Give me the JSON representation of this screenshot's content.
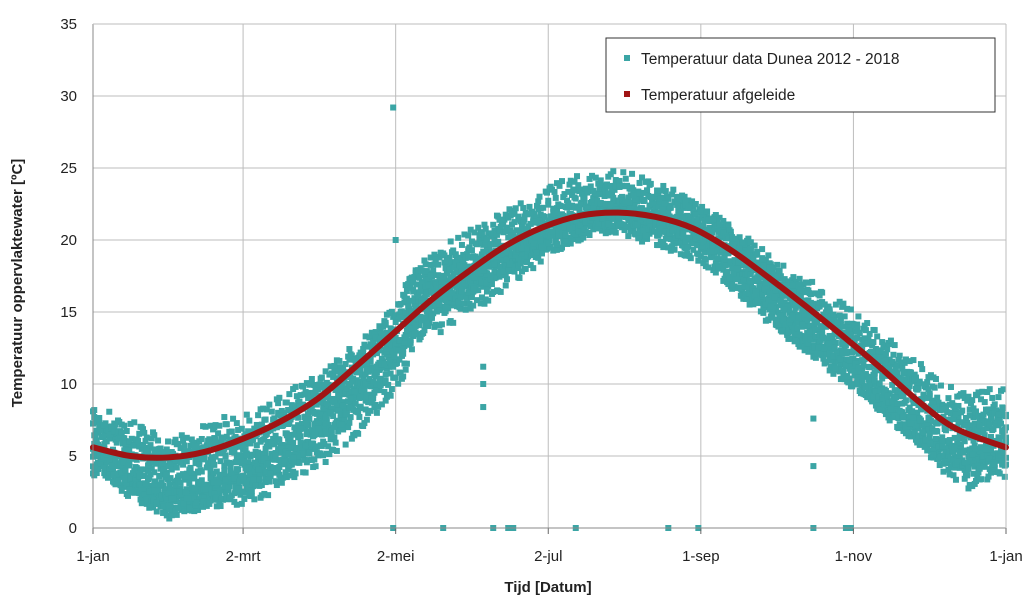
{
  "chart_data": {
    "type": "scatter",
    "xlabel": "Tijd [Datum]",
    "ylabel": "Temperatuur oppervlaktewater [ºC]",
    "x_range_days": [
      0,
      365
    ],
    "ylim": [
      0,
      35
    ],
    "y_ticks": [
      "0",
      "5",
      "10",
      "15",
      "20",
      "25",
      "30",
      "35"
    ],
    "x_ticks": [
      {
        "day": 0,
        "label": "1-jan"
      },
      {
        "day": 60,
        "label": "2-mrt"
      },
      {
        "day": 121,
        "label": "2-mei"
      },
      {
        "day": 182,
        "label": "2-jul"
      },
      {
        "day": 243,
        "label": "1-sep"
      },
      {
        "day": 304,
        "label": "1-nov"
      },
      {
        "day": 365,
        "label": "1-jan"
      }
    ],
    "grid": true,
    "legend_position": "top-right",
    "series": [
      {
        "name": "Temperatuur data Dunea 2012 - 2018",
        "kind": "scatter",
        "color": "#3ba5a5",
        "profile": [
          [
            0,
            6.5
          ],
          [
            10,
            5.5
          ],
          [
            20,
            4.5
          ],
          [
            30,
            3.5
          ],
          [
            40,
            3.8
          ],
          [
            50,
            4.5
          ],
          [
            60,
            4.8
          ],
          [
            70,
            5.5
          ],
          [
            80,
            6.5
          ],
          [
            90,
            7.5
          ],
          [
            100,
            9.0
          ],
          [
            110,
            10.5
          ],
          [
            120,
            12.5
          ],
          [
            130,
            15.5
          ],
          [
            140,
            16.5
          ],
          [
            150,
            17.5
          ],
          [
            160,
            18.5
          ],
          [
            170,
            19.5
          ],
          [
            180,
            20.5
          ],
          [
            190,
            21.5
          ],
          [
            200,
            22.0
          ],
          [
            210,
            22.5
          ],
          [
            220,
            22.0
          ],
          [
            230,
            21.5
          ],
          [
            240,
            21.0
          ],
          [
            250,
            20.0
          ],
          [
            260,
            18.5
          ],
          [
            270,
            17.0
          ],
          [
            280,
            15.5
          ],
          [
            290,
            14.5
          ],
          [
            300,
            13.0
          ],
          [
            310,
            11.5
          ],
          [
            320,
            10.0
          ],
          [
            330,
            8.5
          ],
          [
            340,
            7.0
          ],
          [
            350,
            6.0
          ],
          [
            360,
            6.5
          ],
          [
            365,
            6.5
          ]
        ],
        "outliers": [
          [
            120,
            29.2
          ],
          [
            121,
            20.0
          ],
          [
            156,
            11.2
          ],
          [
            156,
            10.0
          ],
          [
            156,
            8.4
          ],
          [
            288,
            7.6
          ],
          [
            288,
            4.3
          ],
          [
            120,
            0
          ],
          [
            140,
            0
          ],
          [
            160,
            0
          ],
          [
            166,
            0
          ],
          [
            168,
            0
          ],
          [
            193,
            0
          ],
          [
            230,
            0
          ],
          [
            242,
            0
          ],
          [
            288,
            0
          ],
          [
            301,
            0
          ],
          [
            303,
            0
          ]
        ]
      },
      {
        "name": "Temperatuur afgeleide",
        "kind": "line",
        "color": "#a01414",
        "x": [
          0,
          15,
          30,
          45,
          60,
          75,
          90,
          105,
          120,
          135,
          150,
          165,
          180,
          195,
          210,
          225,
          240,
          255,
          270,
          285,
          300,
          315,
          330,
          345,
          365
        ],
        "y": [
          5.6,
          5.0,
          4.9,
          5.3,
          6.2,
          7.4,
          9.0,
          11.2,
          13.5,
          15.8,
          17.8,
          19.6,
          20.9,
          21.7,
          21.9,
          21.6,
          20.8,
          19.3,
          17.4,
          15.4,
          13.3,
          11.1,
          8.8,
          6.9,
          5.6
        ]
      }
    ]
  }
}
